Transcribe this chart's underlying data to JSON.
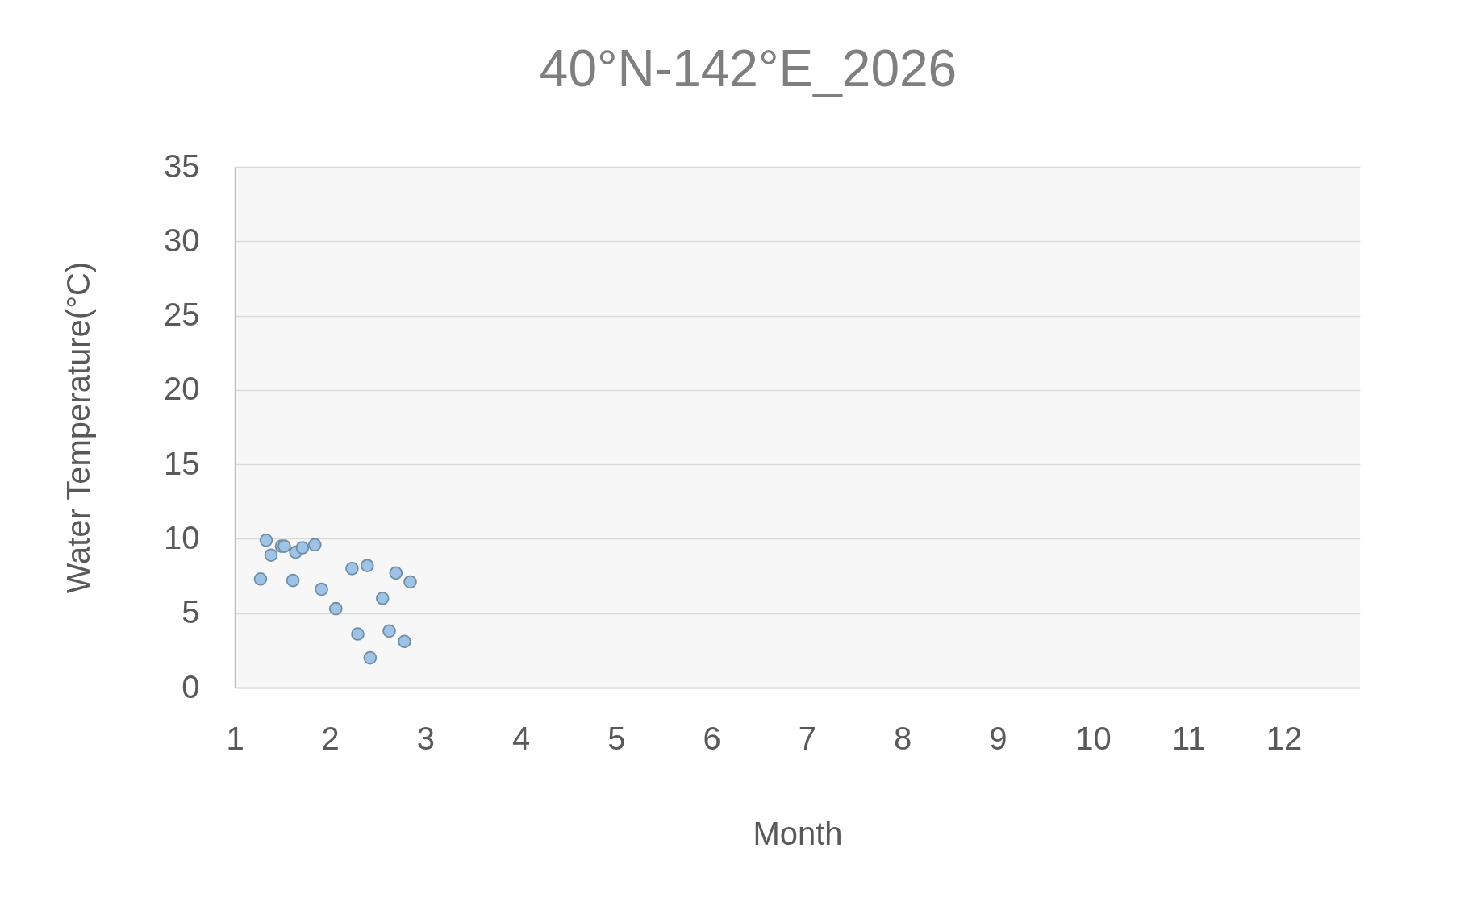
{
  "chart_data": {
    "type": "scatter",
    "title": "40°N-142°E_2026",
    "xlabel": "Month",
    "ylabel": "Water Temperature(°C)",
    "x": [
      1.27,
      1.33,
      1.38,
      1.49,
      1.52,
      1.61,
      1.64,
      1.71,
      1.84,
      1.91,
      2.06,
      2.23,
      2.29,
      2.39,
      2.42,
      2.55,
      2.62,
      2.69,
      2.78,
      2.84
    ],
    "series": [
      {
        "color": "#9dc3e6",
        "values": [
          7.3,
          9.9,
          8.9,
          9.5,
          9.5,
          7.2,
          9.1,
          9.4,
          9.6,
          6.6,
          5.3,
          8.0,
          3.6,
          8.2,
          2.0,
          6.0,
          3.8,
          7.7,
          3.1,
          7.1
        ]
      }
    ],
    "xlim": [
      1,
      12.8
    ],
    "xticks": [
      1,
      2,
      3,
      4,
      5,
      6,
      7,
      8,
      9,
      10,
      11,
      12
    ],
    "ylim": [
      0,
      35
    ],
    "yticks": [
      0,
      5,
      10,
      15,
      20,
      25,
      30,
      35
    ],
    "grid": "y",
    "marker": "circle"
  }
}
